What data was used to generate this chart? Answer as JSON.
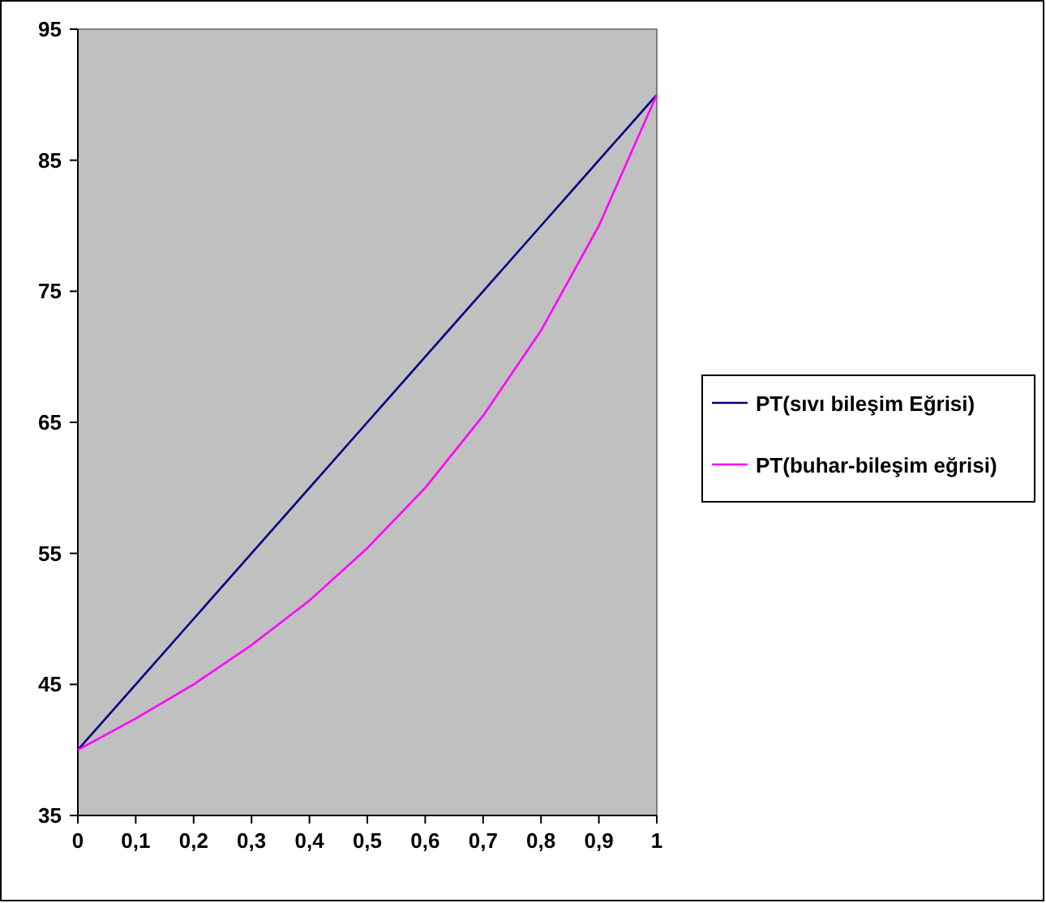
{
  "chart_data": {
    "type": "line",
    "categories": [
      "0",
      "0,1",
      "0,2",
      "0,3",
      "0,4",
      "0,5",
      "0,6",
      "0,7",
      "0,8",
      "0,9",
      "1"
    ],
    "series": [
      {
        "name": "PT(sıvı bileşim Eğrisi)",
        "color": "#000080",
        "values": [
          40,
          45,
          50,
          55,
          60,
          65,
          70,
          75,
          80,
          85,
          90
        ]
      },
      {
        "name": "PT(buhar-bileşim eğrisi)",
        "color": "#ff00ff",
        "values": [
          40,
          42.4,
          45,
          48,
          51.4,
          55.4,
          60,
          65.5,
          72,
          80,
          90
        ]
      }
    ],
    "ylim": [
      35,
      95
    ],
    "yticks": [
      35,
      45,
      55,
      65,
      75,
      85,
      95
    ],
    "grid": false,
    "legend": "right",
    "marker": "none",
    "line_style": "solid"
  }
}
